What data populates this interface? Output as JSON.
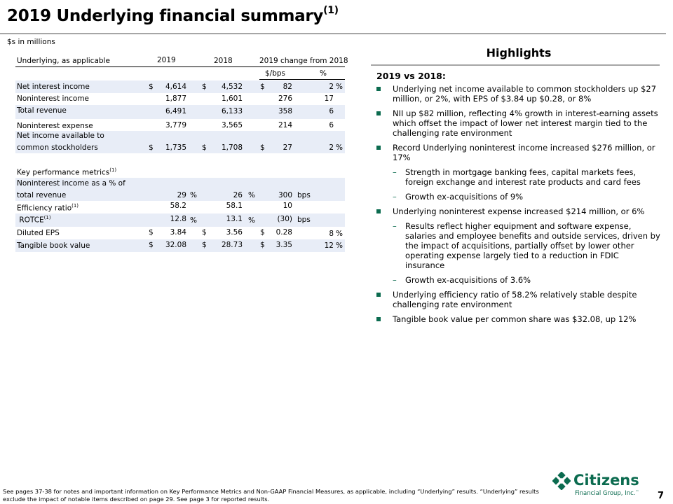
{
  "title": {
    "text": "2019 Underlying financial summary",
    "sup": "(1)"
  },
  "units": "$s in millions",
  "table": {
    "col_label": "Underlying, as applicable",
    "col_2019": "2019",
    "col_2018": "2018",
    "col_change": "2019 change from 2018",
    "sub_bps": "$/bps",
    "sub_pct": "%",
    "rows": [
      {
        "label": "Net interest income",
        "c19": "$",
        "v19": "4,614",
        "c18": "$",
        "v18": "4,532",
        "cch": "$",
        "vch": "82",
        "pct": "2",
        "pu": "%"
      },
      {
        "label": "Noninterest income",
        "v19": "1,877",
        "v18": "1,601",
        "vch": "276",
        "pct": "17"
      },
      {
        "label": "Total revenue",
        "v19": "6,491",
        "v18": "6,133",
        "vch": "358",
        "pct": "6"
      },
      {
        "label": "Noninterest expense",
        "v19": "3,779",
        "v18": "3,565",
        "vch": "214",
        "pct": "6"
      },
      {
        "label1": "Net income available to",
        "label2": "common stockholders",
        "c19": "$",
        "v19": "1,735",
        "c18": "$",
        "v18": "1,708",
        "cch": "$",
        "vch": "27",
        "pct": "2",
        "pu": "%"
      }
    ],
    "kpm_label": "Key performance metrics",
    "kpm_sup": "(1)",
    "kpm": [
      {
        "label1": "Noninterest income as a % of",
        "label2": "total revenue",
        "v19": "29",
        "u19": "%",
        "v18": "26",
        "u18": "%",
        "vch": "300",
        "uch": "bps"
      },
      {
        "label": "Efficiency ratio",
        "sup": "(1)",
        "v19": "58.2",
        "v18": "58.1",
        "vch": "10"
      },
      {
        "label": "ROTCE",
        "sup": "(1)",
        "v19": "12.8",
        "u19": "%",
        "v18": "13.1",
        "u18": "%",
        "vch": "(30)",
        "uch": "bps"
      },
      {
        "label": "Diluted EPS",
        "c19": "$",
        "v19": "3.84",
        "c18": "$",
        "v18": "3.56",
        "cch": "$",
        "vch": "0.28",
        "pct": "8",
        "pu": "%"
      },
      {
        "label": "Tangible book value",
        "c19": "$",
        "v19": "32.08",
        "c18": "$",
        "v18": "28.73",
        "cch": "$",
        "vch": "3.35",
        "pct": "12",
        "pu": "%"
      }
    ]
  },
  "highlights": {
    "title": "Highlights",
    "subtitle": "2019 vs 2018:",
    "b1": "Underlying net income available to common stockholders up $27 million, or 2%, with EPS of $3.84 up $0.28, or 8%",
    "b2": "NII up $82 million, reflecting 4% growth in interest-earning assets which offset the impact of lower net interest margin tied to the challenging rate environment",
    "b3": "Record Underlying noninterest income increased $276 million, or 17%",
    "b3s1": "Strength in mortgage banking fees, capital markets fees, foreign exchange and interest rate products and card fees",
    "b3s2": "Growth ex-acquisitions of 9%",
    "b4": "Underlying noninterest expense increased $214 million, or 6%",
    "b4s1": "Results reflect higher equipment and software expense, salaries and employee benefits and outside services, driven by the impact of acquisitions, partially offset by lower other operating expense largely tied to a reduction in FDIC insurance",
    "b4s2": "Growth ex-acquisitions of 3.6%",
    "b5": "Underlying efficiency ratio of 58.2% relatively stable despite challenging rate environment",
    "b6": "Tangible book value per common share was $32.08, up 12%",
    "dash": "–"
  },
  "footnote": "See pages 37-38 for notes and important information on Key Performance Metrics and Non-GAAP Financial Measures, as applicable, including “Underlying” results. “Underlying” results exclude the impact of notable items described on page 29. See page 3 for reported results.",
  "logo": {
    "name": "Citizens",
    "sub": "Financial Group, Inc.",
    "tm": "™"
  },
  "page_number": "7",
  "colors": {
    "brand_green": "#0b6b4f",
    "row_shade": "#e8edf7",
    "rule_gray": "#a6a6a6"
  }
}
